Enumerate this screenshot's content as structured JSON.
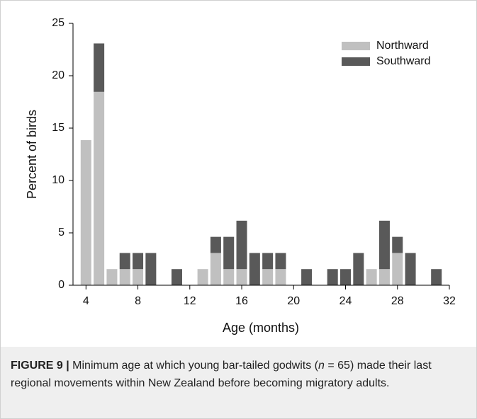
{
  "chart_data": {
    "type": "stacked_bar",
    "ylabel": "Percent of birds",
    "xlabel": "Age (months)",
    "x": [
      4,
      5,
      6,
      7,
      8,
      9,
      11,
      13,
      14,
      15,
      16,
      17,
      18,
      19,
      21,
      23,
      24,
      25,
      26,
      27,
      28,
      29,
      31
    ],
    "series": [
      {
        "name": "Northward",
        "color": "#c0c0c0",
        "values": [
          13.85,
          18.46,
          1.54,
          1.54,
          1.54,
          0,
          0,
          1.54,
          3.08,
          1.54,
          1.54,
          0,
          1.54,
          1.54,
          0,
          0,
          0,
          0,
          1.54,
          1.54,
          3.08,
          0,
          0
        ]
      },
      {
        "name": "Southward",
        "color": "#595959",
        "values": [
          0,
          4.62,
          0,
          1.54,
          1.54,
          3.08,
          1.54,
          0,
          1.54,
          3.08,
          4.62,
          3.08,
          1.54,
          1.54,
          1.54,
          1.54,
          1.54,
          3.08,
          0,
          4.62,
          1.54,
          3.08,
          1.54
        ]
      }
    ],
    "xlim": [
      3,
      32
    ],
    "xticks": [
      4,
      8,
      12,
      16,
      20,
      24,
      28,
      32
    ],
    "ylim": [
      0,
      25
    ],
    "yticks": [
      0,
      5,
      10,
      15,
      20,
      25
    ],
    "legend": "upper-right"
  },
  "caption": {
    "label": "FIGURE 9 |",
    "text_before": " Minimum age at which young bar-tailed godwits (",
    "italic": "n",
    "text_after": " = 65) made their last regional movements within New Zealand before becoming migratory adults."
  }
}
